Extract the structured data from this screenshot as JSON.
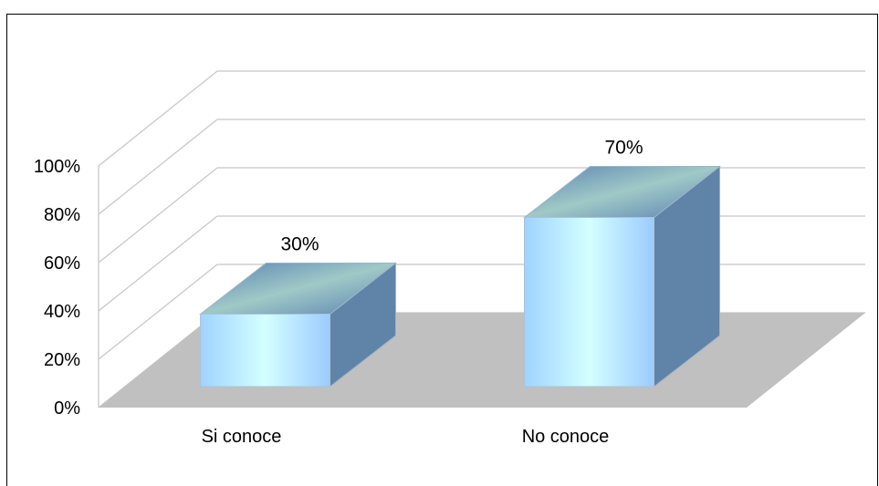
{
  "chart_data": {
    "type": "bar",
    "style": "3d-column",
    "categories": [
      "Si conoce",
      "No conoce"
    ],
    "values": [
      30,
      70
    ],
    "data_labels": [
      "30%",
      "70%"
    ],
    "ylim": [
      0,
      100
    ],
    "yticks": [
      0,
      20,
      40,
      60,
      80,
      100
    ],
    "ytick_labels": [
      "0%",
      "20%",
      "40%",
      "60%",
      "80%",
      "100%"
    ],
    "grid": true,
    "legend": "none",
    "colors": {
      "bar_front": "#bfe9ff",
      "bar_side": "#5f84a8",
      "bar_top": "#8fb3c8",
      "floor": "#c0c0c0",
      "gridline": "#c8c8c8"
    }
  }
}
